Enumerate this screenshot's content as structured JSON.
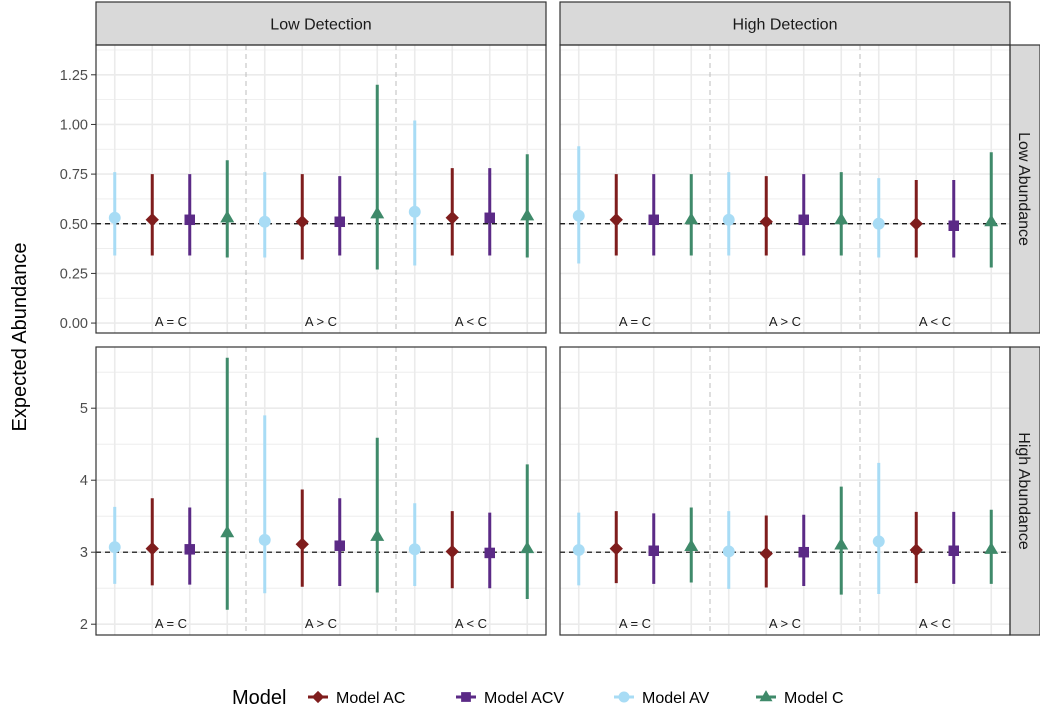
{
  "chart_data": {
    "type": "scatter",
    "ylabel": "Expected Abundance",
    "legend": {
      "title": "Model",
      "position": "bottom",
      "entries": [
        {
          "name": "Model AC",
          "color": "#7f1d1d",
          "shape": "diamond"
        },
        {
          "name": "Model ACV",
          "color": "#5b2a86",
          "shape": "square"
        },
        {
          "name": "Model AV",
          "color": "#a8dcf5",
          "shape": "circle"
        },
        {
          "name": "Model C",
          "color": "#3f8a6a",
          "shape": "triangle"
        }
      ]
    },
    "columns": [
      "Low Detection",
      "High Detection"
    ],
    "rows": [
      {
        "name": "Low Abundance",
        "ylim": [
          -0.05,
          1.4
        ],
        "ticks": [
          0.0,
          0.25,
          0.5,
          0.75,
          1.0,
          1.25
        ],
        "tick_labels": [
          "0.00",
          "0.25",
          "0.50",
          "0.75",
          "1.00",
          "1.25"
        ],
        "reference": 0.5
      },
      {
        "name": "High Abundance",
        "ylim": [
          1.85,
          5.85
        ],
        "ticks": [
          2,
          3,
          4,
          5
        ],
        "tick_labels": [
          "2",
          "3",
          "4",
          "5"
        ],
        "reference": 3
      }
    ],
    "groups": [
      "A = C",
      "A > C",
      "A < C"
    ],
    "model_order": [
      "Model AV",
      "Model AC",
      "Model ACV",
      "Model C"
    ],
    "panels": [
      {
        "row": "Low Abundance",
        "column": "Low Detection",
        "groups": [
          {
            "label": "A = C",
            "points": [
              {
                "model": "Model AV",
                "y": 0.53,
                "low": 0.34,
                "high": 0.76
              },
              {
                "model": "Model AC",
                "y": 0.52,
                "low": 0.34,
                "high": 0.75
              },
              {
                "model": "Model ACV",
                "y": 0.52,
                "low": 0.34,
                "high": 0.75
              },
              {
                "model": "Model C",
                "y": 0.53,
                "low": 0.33,
                "high": 0.82
              }
            ]
          },
          {
            "label": "A > C",
            "points": [
              {
                "model": "Model AV",
                "y": 0.51,
                "low": 0.33,
                "high": 0.76
              },
              {
                "model": "Model AC",
                "y": 0.51,
                "low": 0.32,
                "high": 0.75
              },
              {
                "model": "Model ACV",
                "y": 0.51,
                "low": 0.34,
                "high": 0.74
              },
              {
                "model": "Model C",
                "y": 0.55,
                "low": 0.27,
                "high": 1.2
              }
            ]
          },
          {
            "label": "A < C",
            "points": [
              {
                "model": "Model AV",
                "y": 0.56,
                "low": 0.29,
                "high": 1.02
              },
              {
                "model": "Model AC",
                "y": 0.53,
                "low": 0.34,
                "high": 0.78
              },
              {
                "model": "Model ACV",
                "y": 0.53,
                "low": 0.34,
                "high": 0.78
              },
              {
                "model": "Model C",
                "y": 0.54,
                "low": 0.33,
                "high": 0.85
              }
            ]
          }
        ]
      },
      {
        "row": "Low Abundance",
        "column": "High Detection",
        "groups": [
          {
            "label": "A = C",
            "points": [
              {
                "model": "Model AV",
                "y": 0.54,
                "low": 0.3,
                "high": 0.89
              },
              {
                "model": "Model AC",
                "y": 0.52,
                "low": 0.34,
                "high": 0.75
              },
              {
                "model": "Model ACV",
                "y": 0.52,
                "low": 0.34,
                "high": 0.75
              },
              {
                "model": "Model C",
                "y": 0.52,
                "low": 0.34,
                "high": 0.75
              }
            ]
          },
          {
            "label": "A > C",
            "points": [
              {
                "model": "Model AV",
                "y": 0.52,
                "low": 0.34,
                "high": 0.76
              },
              {
                "model": "Model AC",
                "y": 0.51,
                "low": 0.34,
                "high": 0.74
              },
              {
                "model": "Model ACV",
                "y": 0.52,
                "low": 0.34,
                "high": 0.75
              },
              {
                "model": "Model C",
                "y": 0.52,
                "low": 0.34,
                "high": 0.76
              }
            ]
          },
          {
            "label": "A < C",
            "points": [
              {
                "model": "Model AV",
                "y": 0.5,
                "low": 0.33,
                "high": 0.73
              },
              {
                "model": "Model AC",
                "y": 0.5,
                "low": 0.33,
                "high": 0.72
              },
              {
                "model": "Model ACV",
                "y": 0.49,
                "low": 0.33,
                "high": 0.72
              },
              {
                "model": "Model C",
                "y": 0.51,
                "low": 0.28,
                "high": 0.86
              }
            ]
          }
        ]
      },
      {
        "row": "High Abundance",
        "column": "Low Detection",
        "groups": [
          {
            "label": "A = C",
            "points": [
              {
                "model": "Model AV",
                "y": 3.07,
                "low": 2.56,
                "high": 3.63
              },
              {
                "model": "Model AC",
                "y": 3.05,
                "low": 2.54,
                "high": 3.75
              },
              {
                "model": "Model ACV",
                "y": 3.04,
                "low": 2.55,
                "high": 3.62
              },
              {
                "model": "Model C",
                "y": 3.27,
                "low": 2.2,
                "high": 5.7
              }
            ]
          },
          {
            "label": "A > C",
            "points": [
              {
                "model": "Model AV",
                "y": 3.17,
                "low": 2.43,
                "high": 4.9
              },
              {
                "model": "Model AC",
                "y": 3.11,
                "low": 2.52,
                "high": 3.87
              },
              {
                "model": "Model ACV",
                "y": 3.09,
                "low": 2.53,
                "high": 3.75
              },
              {
                "model": "Model C",
                "y": 3.22,
                "low": 2.44,
                "high": 4.59
              }
            ]
          },
          {
            "label": "A < C",
            "points": [
              {
                "model": "Model AV",
                "y": 3.04,
                "low": 2.53,
                "high": 3.68
              },
              {
                "model": "Model AC",
                "y": 3.01,
                "low": 2.5,
                "high": 3.57
              },
              {
                "model": "Model ACV",
                "y": 2.99,
                "low": 2.5,
                "high": 3.55
              },
              {
                "model": "Model C",
                "y": 3.05,
                "low": 2.35,
                "high": 4.22
              }
            ]
          }
        ]
      },
      {
        "row": "High Abundance",
        "column": "High Detection",
        "groups": [
          {
            "label": "A = C",
            "points": [
              {
                "model": "Model AV",
                "y": 3.03,
                "low": 2.54,
                "high": 3.55
              },
              {
                "model": "Model AC",
                "y": 3.05,
                "low": 2.57,
                "high": 3.57
              },
              {
                "model": "Model ACV",
                "y": 3.02,
                "low": 2.56,
                "high": 3.54
              },
              {
                "model": "Model C",
                "y": 3.08,
                "low": 2.58,
                "high": 3.62
              }
            ]
          },
          {
            "label": "A > C",
            "points": [
              {
                "model": "Model AV",
                "y": 3.01,
                "low": 2.49,
                "high": 3.57
              },
              {
                "model": "Model AC",
                "y": 2.98,
                "low": 2.51,
                "high": 3.51
              },
              {
                "model": "Model ACV",
                "y": 3.0,
                "low": 2.53,
                "high": 3.52
              },
              {
                "model": "Model C",
                "y": 3.1,
                "low": 2.41,
                "high": 3.91
              }
            ]
          },
          {
            "label": "A < C",
            "points": [
              {
                "model": "Model AV",
                "y": 3.15,
                "low": 2.42,
                "high": 4.24
              },
              {
                "model": "Model AC",
                "y": 3.03,
                "low": 2.57,
                "high": 3.56
              },
              {
                "model": "Model ACV",
                "y": 3.02,
                "low": 2.56,
                "high": 3.56
              },
              {
                "model": "Model C",
                "y": 3.04,
                "low": 2.56,
                "high": 3.59
              }
            ]
          }
        ]
      }
    ],
    "grid": true
  }
}
